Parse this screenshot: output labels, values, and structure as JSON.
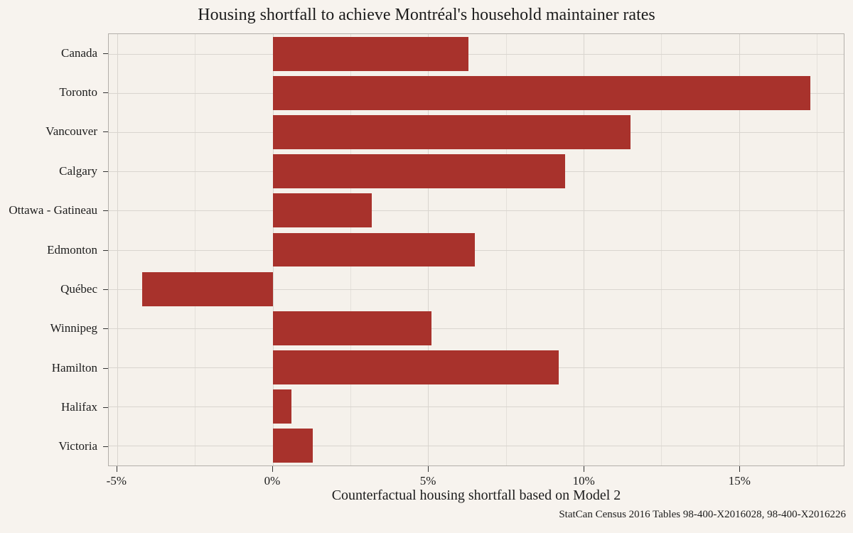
{
  "chart_data": {
    "type": "bar",
    "orientation": "horizontal",
    "title": "Housing shortfall to achieve Montréal's household maintainer rates",
    "xlabel": "Counterfactual housing shortfall based on Model 2",
    "caption": "StatCan Census 2016 Tables 98-400-X2016028, 98-400-X2016226",
    "categories": [
      "Canada",
      "Toronto",
      "Vancouver",
      "Calgary",
      "Ottawa - Gatineau",
      "Edmonton",
      "Québec",
      "Winnipeg",
      "Hamilton",
      "Halifax",
      "Victoria"
    ],
    "values": [
      6.3,
      17.3,
      11.5,
      9.4,
      3.2,
      6.5,
      -4.2,
      5.1,
      9.2,
      0.6,
      1.3
    ],
    "unit": "%",
    "xlim": [
      -5.27,
      18.37
    ],
    "x_major_ticks": [
      -5,
      0,
      5,
      10,
      15
    ],
    "x_major_tick_labels": [
      "-5%",
      "0%",
      "5%",
      "10%",
      "15%"
    ],
    "x_minor_ticks": [
      -2.5,
      2.5,
      7.5,
      12.5,
      17.5
    ],
    "grid": "vertical major + minor, horizontal major at category centers",
    "legend": "none",
    "colors": {
      "bar": "#a8322c",
      "background": "#f7f3ee",
      "panel_background": "#f5f1eb",
      "grid_major": "#d9d5cf",
      "grid_minor": "#e4e0da",
      "panel_border": "#b3afaa",
      "text": "#1c1c1c",
      "tick": "#333333"
    }
  }
}
